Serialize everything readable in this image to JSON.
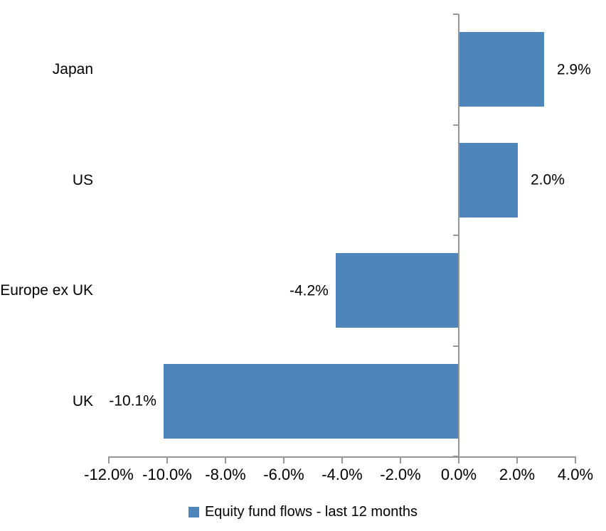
{
  "chart_data": {
    "type": "bar",
    "orientation": "horizontal",
    "title": "",
    "xlabel": "",
    "ylabel": "",
    "categories": [
      "Japan",
      "US",
      "Europe ex UK",
      "UK"
    ],
    "series": [
      {
        "name": "Equity fund flows - last 12 months",
        "color": "#4E86BC",
        "values": [
          2.9,
          2.0,
          -4.2,
          -10.1
        ],
        "data_labels": [
          "2.9%",
          "2.0%",
          "-4.2%",
          "-10.1%"
        ]
      }
    ],
    "x_axis": {
      "min": -12,
      "max": 4,
      "step": 2,
      "ticks": [
        {
          "value": -12,
          "label": "-12.0%"
        },
        {
          "value": -10,
          "label": "-10.0%"
        },
        {
          "value": -8,
          "label": "-8.0%"
        },
        {
          "value": -6,
          "label": "-6.0%"
        },
        {
          "value": -4,
          "label": "-4.0%"
        },
        {
          "value": -2,
          "label": "-2.0%"
        },
        {
          "value": 0,
          "label": "0.0%"
        },
        {
          "value": 2,
          "label": "2.0%"
        },
        {
          "value": 4,
          "label": "4.0%"
        }
      ]
    },
    "grid": false,
    "legend": {
      "position": "bottom",
      "items": [
        {
          "label": "Equity fund flows - last 12 months",
          "color": "#4E86BC"
        }
      ]
    },
    "colors": {
      "bar": "#4E86BC",
      "axis": "#969696",
      "text": "#000000",
      "background": "#FFFFFF"
    }
  }
}
